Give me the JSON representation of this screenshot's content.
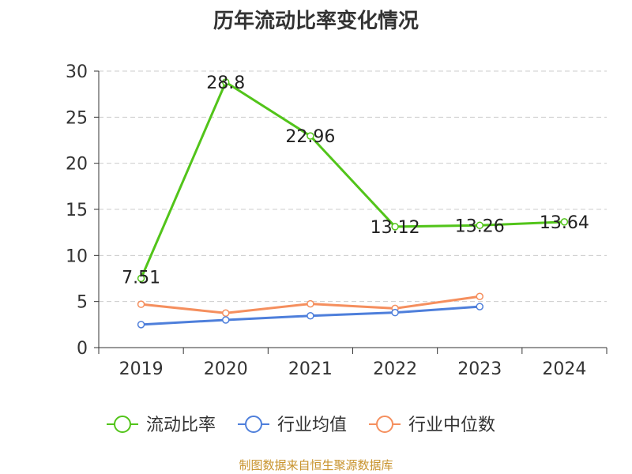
{
  "chart_data": {
    "type": "line",
    "title": "历年流动比率变化情况",
    "categories": [
      "2019",
      "2020",
      "2021",
      "2022",
      "2023",
      "2024"
    ],
    "series": [
      {
        "name": "流动比率",
        "color": "#52c41a",
        "values": [
          7.51,
          28.8,
          22.96,
          13.12,
          13.26,
          13.64
        ],
        "labels": [
          "7.51",
          "28.8",
          "22.96",
          "13.12",
          "13.26",
          "13.64"
        ]
      },
      {
        "name": "行业均值",
        "color": "#4e7fdb",
        "values": [
          2.5,
          3.0,
          3.45,
          3.8,
          4.45,
          null
        ]
      },
      {
        "name": "行业中位数",
        "color": "#f58f5e",
        "values": [
          4.7,
          3.75,
          4.75,
          4.25,
          5.55,
          null
        ]
      }
    ],
    "yticks": [
      "0",
      "5",
      "10",
      "15",
      "20",
      "25",
      "30"
    ],
    "ylim": [
      0,
      30
    ],
    "grid": true,
    "legend": "bottom"
  },
  "source": "制图数据来自恒生聚源数据库"
}
